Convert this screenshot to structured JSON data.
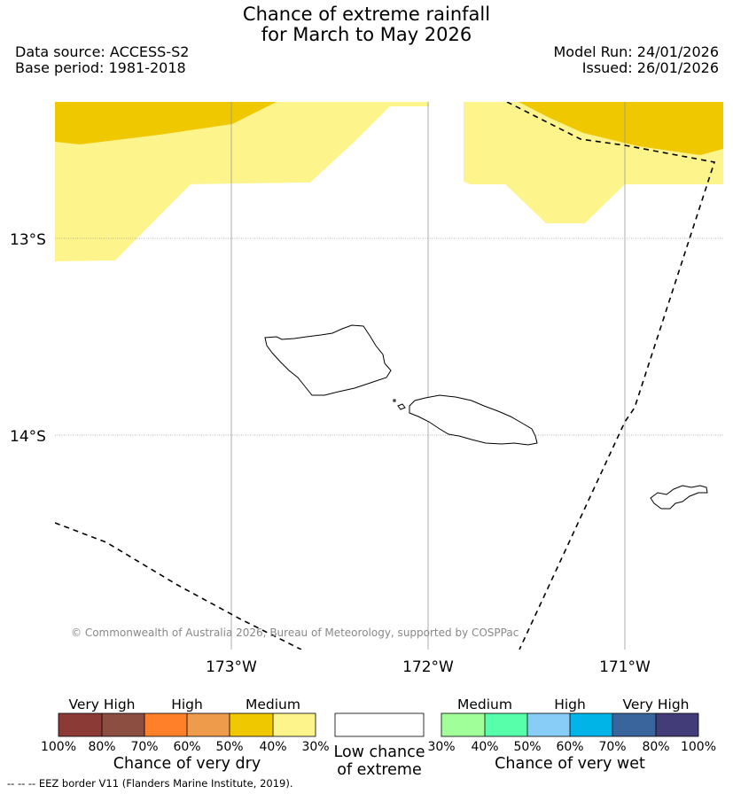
{
  "title_line1": "Chance of extreme rainfall",
  "title_line2": "for March to May 2026",
  "data_source": "Data source: ACCESS-S2",
  "base_period": "Base period: 1981-2018",
  "model_run": "Model Run: 24/01/2026",
  "issued": "Issued: 26/01/2026",
  "copyright": "© Commonwealth of Australia 2026, Bureau of Meteorology, supported by COSPPac",
  "lat_labels": [
    "13°S",
    "14°S"
  ],
  "lon_labels": [
    "173°W",
    "172°W",
    "171°W"
  ],
  "colors": {
    "dry_very_high_1": "#8b3a35",
    "dry_very_high_2": "#8b4e40",
    "dry_high_1": "#ff8028",
    "dry_high_2": "#ef9b4c",
    "dry_medium_1": "#efc800",
    "dry_medium_2": "#fef48c",
    "low": "#ffffff",
    "wet_medium_1": "#a0ff98",
    "wet_medium_2": "#58ffaa",
    "wet_high_1": "#88ccf8",
    "wet_high_2": "#00b4e8",
    "wet_very_high_1": "#3a649c",
    "wet_very_high_2": "#423d78"
  },
  "dry_colorbar": {
    "categories": [
      "Very High",
      "High",
      "Medium"
    ],
    "ticks": [
      "100%",
      "80%",
      "70%",
      "60%",
      "50%",
      "40%",
      "30%"
    ],
    "title": "Chance of very dry"
  },
  "low_box": {
    "line1": "Low chance",
    "line2": "of extreme"
  },
  "wet_colorbar": {
    "categories": [
      "Medium",
      "High",
      "Very High"
    ],
    "ticks": [
      "30%",
      "40%",
      "50%",
      "60%",
      "70%",
      "80%",
      "100%"
    ],
    "title": "Chance of very wet"
  },
  "footnote": "-- -- -- EEZ border V11 (Flanders Marine Institute, 2019)."
}
